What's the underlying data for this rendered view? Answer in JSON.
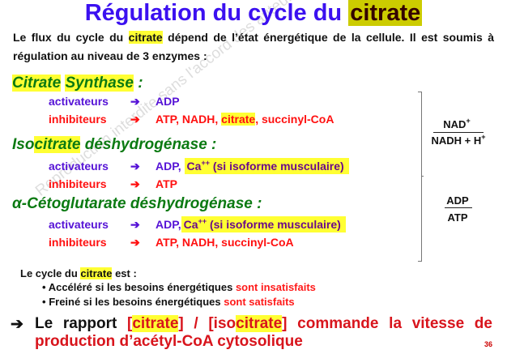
{
  "title": {
    "prefix": "Régulation du cycle du ",
    "highlight": "citrate"
  },
  "intro": {
    "line1_a": "Le flux du cycle du ",
    "line1_hl": "citrate",
    "line1_b": " dépend de l’état énergétique de la cellule. Il est soumis à",
    "line2": "régulation au niveau de 3 enzymes :"
  },
  "enzymes": [
    {
      "name_hl1": "Citrate",
      "name_mid": " ",
      "name_hl2": "Synthase",
      "name_end": " :",
      "activ_label": "activateurs",
      "activ_value": "ADP",
      "inhib_label": "inhibiteurs",
      "inhib_a": "ATP, NADH, ",
      "inhib_hl": "citrate",
      "inhib_b": ", succinyl-CoA"
    },
    {
      "name_a": "Iso",
      "name_hl": "citrate",
      "name_b": " déshydrogénase :",
      "activ_label": "activateurs",
      "activ_value": "ADP, ",
      "ca": "Ca",
      "ca_sup": "++",
      "ca_note": " (si isoforme musculaire)",
      "inhib_label": "inhibiteurs",
      "inhib_value": "ATP"
    },
    {
      "name": "α-Cétoglutarate déshydrogénase :",
      "activ_label": "activateurs",
      "activ_value": "ADP,",
      "ca": "Ca",
      "ca_sup": "++",
      "ca_note": " (si isoforme musculaire)",
      "inhib_label": "inhibiteurs",
      "inhib_value": "ATP, NADH, succinyl-CoA"
    }
  ],
  "arrow_icon": "right-arrow-icon",
  "ratios": {
    "r1_num": "NAD",
    "r1_num_sup": "+",
    "r1_den": "NADH + H",
    "r1_den_sup": "+",
    "r2_num": "ADP",
    "r2_den": "ATP"
  },
  "cycle": {
    "intro_a": "Le cycle du ",
    "intro_hl": "citrate",
    "intro_b": " est :",
    "b1_a": "Accéléré si les besoins énergétiques ",
    "b1_b": "sont insatisfaits",
    "b2_a": "Freiné si les besoins énergétiques ",
    "b2_b": "sont satisfaits",
    "bullet": "•"
  },
  "conclusion": {
    "arrow": "➔",
    "a": "Le rapport ",
    "b1": "[",
    "hl1": "citrate",
    "b2": "] / [iso",
    "hl2": "citrate",
    "c": "] commande la vitesse de",
    "line2": "production d’acétyl-CoA cytosolique"
  },
  "watermark": "Reproduction interdite sans l'accord des auteurs - Faculté de Médecine UNS",
  "page_number": "36",
  "colors": {
    "title": "#3b10f0",
    "enzyme": "#0b7a12",
    "activator": "#5512d6",
    "inhibitor": "#ff1010",
    "highlight": "#ffff33"
  }
}
